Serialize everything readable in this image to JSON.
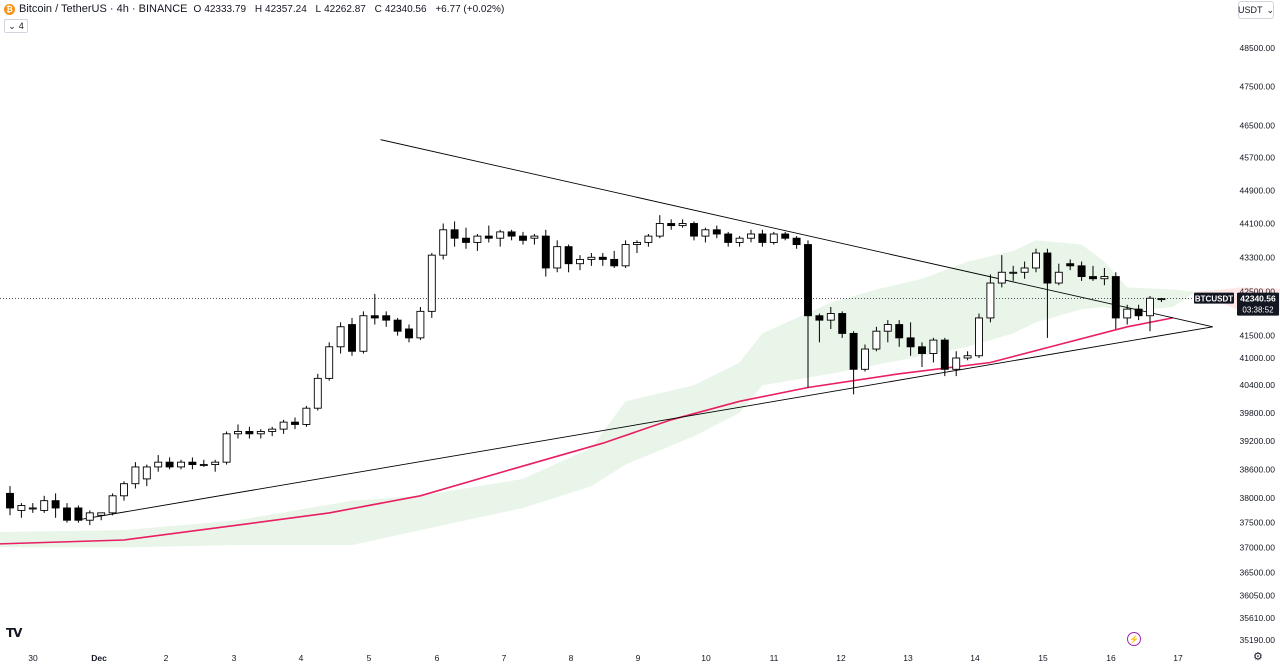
{
  "header": {
    "symbol": "Bitcoin / TetherUS · 4h · BINANCE",
    "open_label": "O",
    "open": "42333.79",
    "high_label": "H",
    "high": "42357.24",
    "low_label": "L",
    "low": "42262.87",
    "close_label": "C",
    "close": "42340.56",
    "change": "+6.77 (+0.02%)",
    "indicator_count": "4"
  },
  "currency": "USDT",
  "price_label": {
    "ticker": "BTCUSDT",
    "price": "42340.56",
    "countdown": "03:38:52"
  },
  "colors": {
    "up_body": "#ffffff",
    "down_body": "#000000",
    "candle_border": "#000000",
    "ma_line": "#e91e63",
    "cloud": "#4caf50",
    "cloud_red": "#f44336",
    "trendline": "#000000"
  },
  "icons": {
    "logo": "bitcoin-logo-icon",
    "tradingview": "tradingview-logo-icon",
    "bolt": "lightning-icon",
    "settings": "gear-icon"
  },
  "chart_data": {
    "type": "candlestick",
    "timeframe": "4h",
    "y_ticks": [
      48500,
      47500,
      46500,
      45700,
      44900,
      44100,
      43300,
      42500,
      41500,
      41000,
      40400,
      39800,
      39200,
      38600,
      38000,
      37500,
      37000,
      36500,
      36050,
      35610,
      35190
    ],
    "x_ticks": [
      "30",
      "Dec",
      "2",
      "3",
      "4",
      "5",
      "6",
      "7",
      "8",
      "9",
      "10",
      "11",
      "12",
      "13",
      "14",
      "15",
      "16",
      "17"
    ],
    "ylim": [
      35190,
      48800
    ],
    "log_scale": true,
    "grid": false,
    "candles": [
      {
        "i": 0,
        "o": 38100,
        "h": 38250,
        "l": 37650,
        "c": 37800
      },
      {
        "i": 1,
        "o": 37750,
        "h": 37900,
        "l": 37600,
        "c": 37850
      },
      {
        "i": 2,
        "o": 37800,
        "h": 37900,
        "l": 37700,
        "c": 37800
      },
      {
        "i": 3,
        "o": 37750,
        "h": 38050,
        "l": 37700,
        "c": 37950
      },
      {
        "i": 4,
        "o": 37950,
        "h": 38100,
        "l": 37600,
        "c": 37800
      },
      {
        "i": 5,
        "o": 37800,
        "h": 37900,
        "l": 37500,
        "c": 37550
      },
      {
        "i": 6,
        "o": 37800,
        "h": 37850,
        "l": 37500,
        "c": 37550
      },
      {
        "i": 7,
        "o": 37550,
        "h": 37750,
        "l": 37450,
        "c": 37700
      },
      {
        "i": 8,
        "o": 37650,
        "h": 37700,
        "l": 37550,
        "c": 37700
      },
      {
        "i": 9,
        "o": 37700,
        "h": 38100,
        "l": 37650,
        "c": 38050
      },
      {
        "i": 10,
        "o": 38050,
        "h": 38350,
        "l": 37950,
        "c": 38300
      },
      {
        "i": 11,
        "o": 38300,
        "h": 38750,
        "l": 38200,
        "c": 38650
      },
      {
        "i": 12,
        "o": 38400,
        "h": 38700,
        "l": 38250,
        "c": 38650
      },
      {
        "i": 13,
        "o": 38650,
        "h": 38900,
        "l": 38550,
        "c": 38750
      },
      {
        "i": 14,
        "o": 38750,
        "h": 38850,
        "l": 38600,
        "c": 38650
      },
      {
        "i": 15,
        "o": 38650,
        "h": 38800,
        "l": 38600,
        "c": 38750
      },
      {
        "i": 16,
        "o": 38750,
        "h": 38850,
        "l": 38600,
        "c": 38700
      },
      {
        "i": 17,
        "o": 38700,
        "h": 38800,
        "l": 38650,
        "c": 38700
      },
      {
        "i": 18,
        "o": 38700,
        "h": 38800,
        "l": 38550,
        "c": 38750
      },
      {
        "i": 19,
        "o": 38750,
        "h": 39400,
        "l": 38700,
        "c": 39350
      },
      {
        "i": 20,
        "o": 39350,
        "h": 39550,
        "l": 39250,
        "c": 39400
      },
      {
        "i": 21,
        "o": 39400,
        "h": 39500,
        "l": 39250,
        "c": 39350
      },
      {
        "i": 22,
        "o": 39350,
        "h": 39450,
        "l": 39250,
        "c": 39400
      },
      {
        "i": 23,
        "o": 39400,
        "h": 39500,
        "l": 39300,
        "c": 39450
      },
      {
        "i": 24,
        "o": 39450,
        "h": 39650,
        "l": 39350,
        "c": 39600
      },
      {
        "i": 25,
        "o": 39600,
        "h": 39700,
        "l": 39450,
        "c": 39550
      },
      {
        "i": 26,
        "o": 39550,
        "h": 39950,
        "l": 39500,
        "c": 39900
      },
      {
        "i": 27,
        "o": 39900,
        "h": 40650,
        "l": 39850,
        "c": 40550
      },
      {
        "i": 28,
        "o": 40550,
        "h": 41350,
        "l": 40500,
        "c": 41250
      },
      {
        "i": 29,
        "o": 41250,
        "h": 41800,
        "l": 41100,
        "c": 41700
      },
      {
        "i": 30,
        "o": 41750,
        "h": 41900,
        "l": 41050,
        "c": 41150
      },
      {
        "i": 31,
        "o": 41150,
        "h": 42050,
        "l": 41100,
        "c": 41950
      },
      {
        "i": 32,
        "o": 41950,
        "h": 42450,
        "l": 41750,
        "c": 41900
      },
      {
        "i": 33,
        "o": 41950,
        "h": 42050,
        "l": 41700,
        "c": 41850
      },
      {
        "i": 34,
        "o": 41850,
        "h": 41900,
        "l": 41500,
        "c": 41600
      },
      {
        "i": 35,
        "o": 41650,
        "h": 41750,
        "l": 41350,
        "c": 41450
      },
      {
        "i": 36,
        "o": 41450,
        "h": 42150,
        "l": 41400,
        "c": 42050
      },
      {
        "i": 37,
        "o": 42050,
        "h": 43400,
        "l": 41900,
        "c": 43350
      },
      {
        "i": 38,
        "o": 43350,
        "h": 44100,
        "l": 43250,
        "c": 43950
      },
      {
        "i": 39,
        "o": 43950,
        "h": 44150,
        "l": 43550,
        "c": 43750
      },
      {
        "i": 40,
        "o": 43750,
        "h": 44000,
        "l": 43500,
        "c": 43650
      },
      {
        "i": 41,
        "o": 43650,
        "h": 43850,
        "l": 43450,
        "c": 43800
      },
      {
        "i": 42,
        "o": 43800,
        "h": 44050,
        "l": 43650,
        "c": 43750
      },
      {
        "i": 43,
        "o": 43750,
        "h": 43950,
        "l": 43550,
        "c": 43900
      },
      {
        "i": 44,
        "o": 43900,
        "h": 43950,
        "l": 43700,
        "c": 43800
      },
      {
        "i": 45,
        "o": 43800,
        "h": 43900,
        "l": 43600,
        "c": 43700
      },
      {
        "i": 46,
        "o": 43750,
        "h": 43850,
        "l": 43600,
        "c": 43800
      },
      {
        "i": 47,
        "o": 43800,
        "h": 43950,
        "l": 42850,
        "c": 43050
      },
      {
        "i": 48,
        "o": 43050,
        "h": 43700,
        "l": 42950,
        "c": 43550
      },
      {
        "i": 49,
        "o": 43550,
        "h": 43600,
        "l": 42950,
        "c": 43150
      },
      {
        "i": 50,
        "o": 43150,
        "h": 43350,
        "l": 43000,
        "c": 43250
      },
      {
        "i": 51,
        "o": 43250,
        "h": 43400,
        "l": 43100,
        "c": 43300
      },
      {
        "i": 52,
        "o": 43300,
        "h": 43400,
        "l": 43100,
        "c": 43250
      },
      {
        "i": 53,
        "o": 43250,
        "h": 43450,
        "l": 43050,
        "c": 43100
      },
      {
        "i": 54,
        "o": 43100,
        "h": 43700,
        "l": 43050,
        "c": 43600
      },
      {
        "i": 55,
        "o": 43600,
        "h": 43700,
        "l": 43400,
        "c": 43650
      },
      {
        "i": 56,
        "o": 43650,
        "h": 43850,
        "l": 43550,
        "c": 43800
      },
      {
        "i": 57,
        "o": 43800,
        "h": 44300,
        "l": 43750,
        "c": 44100
      },
      {
        "i": 58,
        "o": 44100,
        "h": 44200,
        "l": 43950,
        "c": 44050
      },
      {
        "i": 59,
        "o": 44050,
        "h": 44200,
        "l": 44000,
        "c": 44100
      },
      {
        "i": 60,
        "o": 44100,
        "h": 44150,
        "l": 43700,
        "c": 43800
      },
      {
        "i": 61,
        "o": 43800,
        "h": 44000,
        "l": 43650,
        "c": 43950
      },
      {
        "i": 62,
        "o": 43950,
        "h": 44050,
        "l": 43750,
        "c": 43850
      },
      {
        "i": 63,
        "o": 43850,
        "h": 43900,
        "l": 43550,
        "c": 43650
      },
      {
        "i": 64,
        "o": 43650,
        "h": 43800,
        "l": 43550,
        "c": 43750
      },
      {
        "i": 65,
        "o": 43750,
        "h": 43950,
        "l": 43650,
        "c": 43850
      },
      {
        "i": 66,
        "o": 43850,
        "h": 43950,
        "l": 43550,
        "c": 43650
      },
      {
        "i": 67,
        "o": 43650,
        "h": 43900,
        "l": 43600,
        "c": 43850
      },
      {
        "i": 68,
        "o": 43850,
        "h": 43900,
        "l": 43700,
        "c": 43750
      },
      {
        "i": 69,
        "o": 43750,
        "h": 43800,
        "l": 43500,
        "c": 43600
      },
      {
        "i": 70,
        "o": 43600,
        "h": 43700,
        "l": 40350,
        "c": 41950
      },
      {
        "i": 71,
        "o": 41950,
        "h": 42000,
        "l": 41350,
        "c": 41850
      },
      {
        "i": 72,
        "o": 41850,
        "h": 42150,
        "l": 41650,
        "c": 42000
      },
      {
        "i": 73,
        "o": 42000,
        "h": 42050,
        "l": 41450,
        "c": 41550
      },
      {
        "i": 74,
        "o": 41550,
        "h": 41600,
        "l": 40200,
        "c": 40750
      },
      {
        "i": 75,
        "o": 40750,
        "h": 41300,
        "l": 40700,
        "c": 41200
      },
      {
        "i": 76,
        "o": 41200,
        "h": 41700,
        "l": 41150,
        "c": 41600
      },
      {
        "i": 77,
        "o": 41600,
        "h": 41850,
        "l": 41350,
        "c": 41750
      },
      {
        "i": 78,
        "o": 41750,
        "h": 41850,
        "l": 41250,
        "c": 41450
      },
      {
        "i": 79,
        "o": 41450,
        "h": 41800,
        "l": 41050,
        "c": 41250
      },
      {
        "i": 80,
        "o": 41250,
        "h": 41350,
        "l": 40800,
        "c": 41100
      },
      {
        "i": 81,
        "o": 41100,
        "h": 41450,
        "l": 40900,
        "c": 41400
      },
      {
        "i": 82,
        "o": 41400,
        "h": 41450,
        "l": 40600,
        "c": 40750
      },
      {
        "i": 83,
        "o": 40750,
        "h": 41150,
        "l": 40600,
        "c": 41000
      },
      {
        "i": 84,
        "o": 41000,
        "h": 41150,
        "l": 40950,
        "c": 41050
      },
      {
        "i": 85,
        "o": 41050,
        "h": 42000,
        "l": 41000,
        "c": 41900
      },
      {
        "i": 86,
        "o": 41900,
        "h": 42900,
        "l": 41800,
        "c": 42700
      },
      {
        "i": 87,
        "o": 42700,
        "h": 43350,
        "l": 42600,
        "c": 42950
      },
      {
        "i": 88,
        "o": 42950,
        "h": 43100,
        "l": 42750,
        "c": 42950
      },
      {
        "i": 89,
        "o": 42950,
        "h": 43200,
        "l": 42800,
        "c": 43050
      },
      {
        "i": 90,
        "o": 43050,
        "h": 43500,
        "l": 42950,
        "c": 43400
      },
      {
        "i": 91,
        "o": 43400,
        "h": 43500,
        "l": 41450,
        "c": 42700
      },
      {
        "i": 92,
        "o": 42700,
        "h": 43150,
        "l": 42650,
        "c": 42950
      },
      {
        "i": 93,
        "o": 43150,
        "h": 43250,
        "l": 43000,
        "c": 43100
      },
      {
        "i": 94,
        "o": 43100,
        "h": 43200,
        "l": 42750,
        "c": 42850
      },
      {
        "i": 95,
        "o": 42850,
        "h": 43100,
        "l": 42750,
        "c": 42800
      },
      {
        "i": 96,
        "o": 42800,
        "h": 43050,
        "l": 42650,
        "c": 42850
      },
      {
        "i": 97,
        "o": 42850,
        "h": 42950,
        "l": 41650,
        "c": 41900
      },
      {
        "i": 98,
        "o": 41900,
        "h": 42200,
        "l": 41750,
        "c": 42100
      },
      {
        "i": 99,
        "o": 42100,
        "h": 42200,
        "l": 41850,
        "c": 41950
      },
      {
        "i": 100,
        "o": 41950,
        "h": 42400,
        "l": 41600,
        "c": 42350
      },
      {
        "i": 101,
        "o": 42333.79,
        "h": 42357.24,
        "l": 42262.87,
        "c": 42340.56
      }
    ],
    "ma_line": [
      {
        "i": -4,
        "v": 37050
      },
      {
        "i": 10,
        "v": 37150
      },
      {
        "i": 20,
        "v": 37450
      },
      {
        "i": 28,
        "v": 37700
      },
      {
        "i": 36,
        "v": 38050
      },
      {
        "i": 44,
        "v": 38600
      },
      {
        "i": 52,
        "v": 39150
      },
      {
        "i": 58,
        "v": 39650
      },
      {
        "i": 64,
        "v": 40050
      },
      {
        "i": 70,
        "v": 40350
      },
      {
        "i": 78,
        "v": 40650
      },
      {
        "i": 86,
        "v": 40900
      },
      {
        "i": 92,
        "v": 41300
      },
      {
        "i": 98,
        "v": 41700
      },
      {
        "i": 102,
        "v": 41900
      }
    ],
    "cloud_upper": [
      {
        "i": -4,
        "v": 37300
      },
      {
        "i": 10,
        "v": 37350
      },
      {
        "i": 20,
        "v": 37550
      },
      {
        "i": 30,
        "v": 37950
      },
      {
        "i": 36,
        "v": 38050
      },
      {
        "i": 45,
        "v": 38400
      },
      {
        "i": 51,
        "v": 39050
      },
      {
        "i": 54,
        "v": 40050
      },
      {
        "i": 60,
        "v": 40400
      },
      {
        "i": 64,
        "v": 40900
      },
      {
        "i": 66,
        "v": 41550
      },
      {
        "i": 72,
        "v": 42250
      },
      {
        "i": 76,
        "v": 42550
      },
      {
        "i": 80,
        "v": 42800
      },
      {
        "i": 84,
        "v": 43200
      },
      {
        "i": 88,
        "v": 43450
      },
      {
        "i": 90,
        "v": 43700
      },
      {
        "i": 94,
        "v": 43600
      },
      {
        "i": 96,
        "v": 43200
      },
      {
        "i": 98,
        "v": 42600
      },
      {
        "i": 102,
        "v": 42550
      },
      {
        "i": 104,
        "v": 42500
      }
    ],
    "cloud_lower": [
      {
        "i": -4,
        "v": 37000
      },
      {
        "i": 10,
        "v": 37000
      },
      {
        "i": 20,
        "v": 37050
      },
      {
        "i": 30,
        "v": 37050
      },
      {
        "i": 36,
        "v": 37350
      },
      {
        "i": 45,
        "v": 37800
      },
      {
        "i": 51,
        "v": 38250
      },
      {
        "i": 54,
        "v": 38700
      },
      {
        "i": 60,
        "v": 39300
      },
      {
        "i": 64,
        "v": 39800
      },
      {
        "i": 66,
        "v": 40400
      },
      {
        "i": 72,
        "v": 40650
      },
      {
        "i": 76,
        "v": 40850
      },
      {
        "i": 80,
        "v": 41050
      },
      {
        "i": 84,
        "v": 41250
      },
      {
        "i": 88,
        "v": 41550
      },
      {
        "i": 90,
        "v": 41800
      },
      {
        "i": 94,
        "v": 42100
      },
      {
        "i": 96,
        "v": 42150
      },
      {
        "i": 98,
        "v": 42050
      },
      {
        "i": 102,
        "v": 42150
      },
      {
        "i": 104,
        "v": 42500
      }
    ],
    "cloud_red_upper": [
      {
        "i": 104,
        "v": 42500
      },
      {
        "i": 108,
        "v": 42600
      },
      {
        "i": 114,
        "v": 42550
      }
    ],
    "cloud_red_lower": [
      {
        "i": 104,
        "v": 42500
      },
      {
        "i": 108,
        "v": 42050
      },
      {
        "i": 114,
        "v": 42100
      }
    ],
    "trendlines": [
      {
        "from": {
          "i": 32.5,
          "v": 46150
        },
        "to": {
          "i": 105.5,
          "v": 41700
        }
      },
      {
        "from": {
          "i": 5.8,
          "v": 37550
        },
        "to": {
          "i": 105.5,
          "v": 41700
        }
      }
    ],
    "last_price": 42340.56
  }
}
